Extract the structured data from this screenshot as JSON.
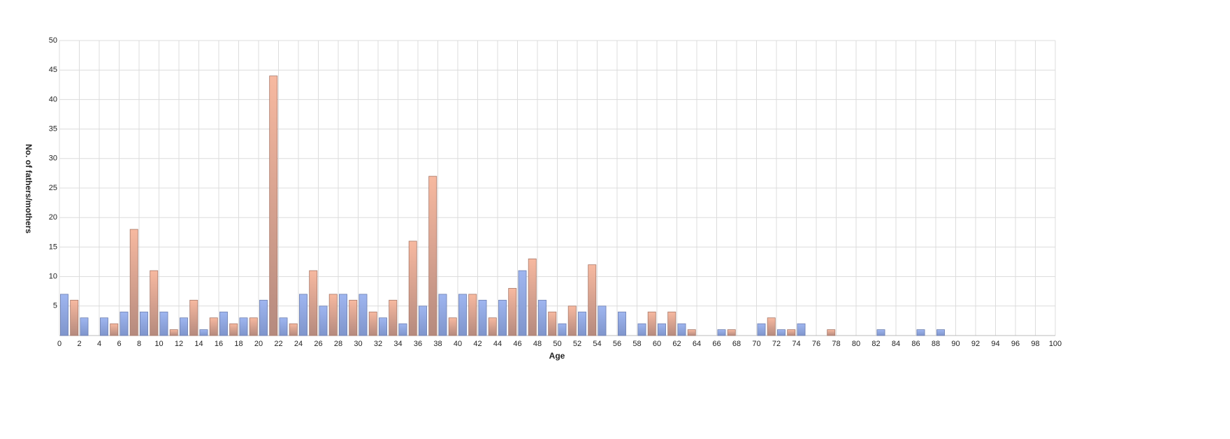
{
  "chart_data": {
    "type": "bar",
    "x_label": "Age",
    "y_label": "No. of fathers/mothers",
    "x": [
      0,
      1,
      2,
      3,
      4,
      5,
      6,
      7,
      8,
      9,
      10,
      11,
      12,
      13,
      14,
      15,
      16,
      17,
      18,
      19,
      20,
      21,
      22,
      23,
      24,
      25,
      26,
      27,
      28,
      29,
      30,
      31,
      32,
      33,
      34,
      35,
      36,
      37,
      38,
      39,
      40,
      41,
      42,
      43,
      44,
      45,
      46,
      47,
      48,
      49,
      50,
      51,
      52,
      53,
      54,
      55,
      56,
      57,
      58,
      59,
      60,
      61,
      62,
      63,
      64,
      65,
      66,
      67,
      68,
      69,
      70,
      71,
      72,
      73,
      74,
      75,
      76,
      77,
      78,
      79,
      80,
      81,
      82,
      83,
      84,
      85,
      86,
      87,
      88,
      89,
      90,
      91,
      92,
      93,
      94,
      95,
      96,
      97,
      98,
      99
    ],
    "values": [
      7,
      6,
      3,
      0,
      3,
      2,
      4,
      18,
      4,
      11,
      4,
      1,
      3,
      6,
      1,
      3,
      4,
      2,
      3,
      3,
      6,
      44,
      3,
      2,
      7,
      11,
      5,
      7,
      7,
      6,
      7,
      4,
      3,
      6,
      2,
      16,
      5,
      27,
      7,
      3,
      7,
      7,
      6,
      3,
      6,
      8,
      11,
      13,
      6,
      4,
      2,
      5,
      4,
      12,
      5,
      0,
      4,
      0,
      2,
      4,
      2,
      4,
      2,
      1,
      0,
      0,
      1,
      1,
      0,
      0,
      2,
      3,
      1,
      1,
      2,
      0,
      0,
      1,
      0,
      0,
      0,
      0,
      1,
      0,
      0,
      0,
      1,
      0,
      1,
      0,
      0,
      0,
      0,
      0,
      0,
      0,
      0,
      0,
      0,
      0
    ],
    "bar_colors": [
      "#9fb6f0",
      "#f7b9a0"
    ],
    "xlim": [
      0,
      100
    ],
    "xticks": [
      0,
      2,
      4,
      6,
      8,
      10,
      12,
      14,
      16,
      18,
      20,
      22,
      24,
      26,
      28,
      30,
      32,
      34,
      36,
      38,
      40,
      42,
      44,
      46,
      48,
      50,
      52,
      54,
      56,
      58,
      60,
      62,
      64,
      66,
      68,
      70,
      72,
      74,
      76,
      78,
      80,
      82,
      84,
      86,
      88,
      90,
      92,
      94,
      96,
      98,
      100
    ],
    "ylim": [
      0,
      50
    ],
    "yticks": [
      5,
      10,
      15,
      20,
      25,
      30,
      35,
      40,
      45,
      50
    ],
    "grid": true
  }
}
